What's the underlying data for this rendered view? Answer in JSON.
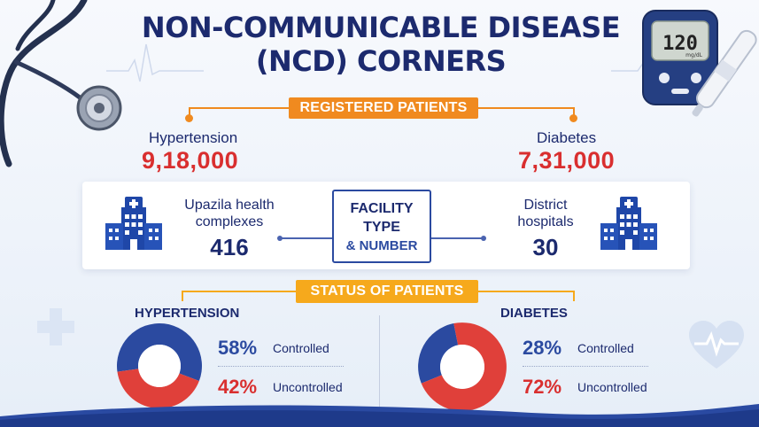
{
  "title": "NON-COMMUNICABLE DISEASE (NCD) CORNERS",
  "registered": {
    "banner": "REGISTERED PATIENTS",
    "hypertension": {
      "label": "Hypertension",
      "value": "9,18,000"
    },
    "diabetes": {
      "label": "Diabetes",
      "value": "7,31,000"
    }
  },
  "facility": {
    "left": {
      "label_line1": "Upazila health",
      "label_line2": "complexes",
      "value": "416"
    },
    "center": {
      "line1": "FACILITY",
      "line2": "TYPE",
      "line3": "& NUMBER"
    },
    "right": {
      "label_line1": "District",
      "label_line2": "hospitals",
      "value": "30"
    }
  },
  "status": {
    "banner": "STATUS OF PATIENTS",
    "hypertension": {
      "heading": "HYPERTENSION",
      "controlled_pct": "58%",
      "controlled_label": "Controlled",
      "uncontrolled_pct": "42%",
      "uncontrolled_label": "Uncontrolled",
      "controlled_fraction": 0.58
    },
    "diabetes": {
      "heading": "DIABETES",
      "controlled_pct": "28%",
      "controlled_label": "Controlled",
      "uncontrolled_pct": "72%",
      "uncontrolled_label": "Uncontrolled",
      "controlled_fraction": 0.28
    }
  },
  "glucometer": {
    "reading": "120",
    "unit": "mg/dL"
  },
  "colors": {
    "controlled": "#2b4aa0",
    "uncontrolled": "#e0403a",
    "accent_orange": "#f08a1f",
    "navy": "#1c2a6e"
  },
  "icons": [
    "stethoscope-icon",
    "glucometer-icon",
    "lancet-pen-icon",
    "hospital-icon",
    "heart-pulse-icon",
    "medical-cross-icon"
  ]
}
